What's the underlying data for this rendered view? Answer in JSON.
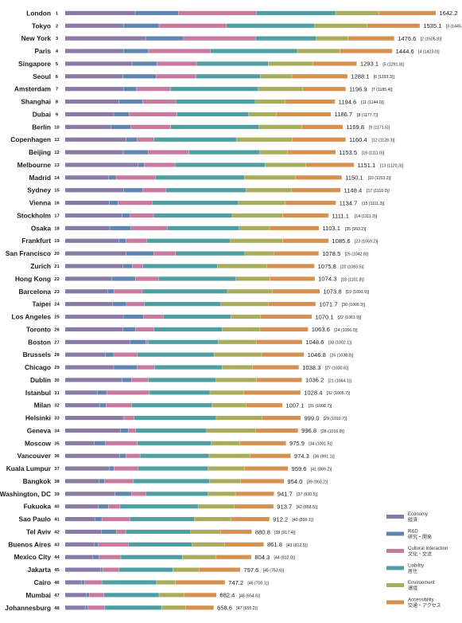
{
  "chart_data": {
    "type": "bar",
    "orientation": "horizontal",
    "stacked": true,
    "legend_position": "bottom-right",
    "grid": false,
    "series_meta": [
      {
        "name": "Economy",
        "name_jp": "経済",
        "color": "#8a7aa6"
      },
      {
        "name": "R&D",
        "name_jp": "研究・開発",
        "color": "#5f86b3"
      },
      {
        "name": "Cultural Interaction",
        "name_jp": "文化・交流",
        "color": "#c9799e"
      },
      {
        "name": "Liability",
        "name_jp": "居住",
        "color": "#4f9ea2"
      },
      {
        "name": "Environment",
        "name_jp": "環境",
        "color": "#a9ac5c"
      },
      {
        "name": "Accessibility",
        "name_jp": "交通・アクセス",
        "color": "#d6904f"
      }
    ],
    "rows": [
      {
        "rank": 1,
        "city": "London",
        "score": "1642.2",
        "prev": "[1 (1655.4)]",
        "seg": [
          343,
          213,
          380,
          388,
          211,
          280
        ]
      },
      {
        "rank": 2,
        "city": "Tokyo",
        "score": "1535.1",
        "prev": "[3 (1445.4)]",
        "seg": [
          286,
          174,
          330,
          431,
          256,
          260
        ]
      },
      {
        "rank": 3,
        "city": "New York",
        "score": "1476.6",
        "prev": "[2 (1505.8)]",
        "seg": [
          394,
          186,
          353,
          296,
          156,
          227
        ]
      },
      {
        "rank": 4,
        "city": "Paris",
        "score": "1444.6",
        "prev": "[4 (1423.0)]",
        "seg": [
          287,
          121,
          303,
          426,
          209,
          256
        ]
      },
      {
        "rank": 5,
        "city": "Singapore",
        "score": "1293.1",
        "prev": "[5 (1291.8)]",
        "seg": [
          328,
          121,
          194,
          351,
          218,
          216
        ]
      },
      {
        "rank": 6,
        "city": "Seoul",
        "score": "1288.1",
        "prev": "[6 (1193.3)]",
        "seg": [
          283,
          163,
          194,
          315,
          155,
          273
        ]
      },
      {
        "rank": 7,
        "city": "Amsterdam",
        "score": "1196.9",
        "prev": "[7 (1185.4)]",
        "seg": [
          287,
          63,
          166,
          430,
          218,
          210
        ]
      },
      {
        "rank": 8,
        "city": "Shanghai",
        "score": "1194.6",
        "prev": "[11 (1144.0)]",
        "seg": [
          264,
          115,
          163,
          389,
          145,
          246
        ]
      },
      {
        "rank": 9,
        "city": "Dubai",
        "score": "1186.7",
        "prev": "[8 (1177.7)]",
        "seg": [
          238,
          76,
          234,
          351,
          136,
          267
        ]
      },
      {
        "rank": 10,
        "city": "Berlin",
        "score": "1169.8",
        "prev": "[9 (1171.5)]",
        "seg": [
          226,
          95,
          196,
          432,
          209,
          202
        ]
      },
      {
        "rank": 11,
        "city": "Copenhagen",
        "score": "1160.4",
        "prev": "[12 (1128.3)]",
        "seg": [
          299,
          55,
          82,
          402,
          275,
          261
        ]
      },
      {
        "rank": 12,
        "city": "Beijing",
        "score": "1153.5",
        "prev": "[16 (1111.0)]",
        "seg": [
          285,
          122,
          200,
          346,
          135,
          237
        ]
      },
      {
        "rank": 13,
        "city": "Melbourne",
        "score": "1151.1",
        "prev": "[13 (1120.3)]",
        "seg": [
          356,
          32,
          151,
          440,
          200,
          236
        ]
      },
      {
        "rank": 14,
        "city": "Madrid",
        "score": "1150.1",
        "prev": "[10 (1153.2)]",
        "seg": [
          214,
          36,
          192,
          435,
          252,
          226
        ]
      },
      {
        "rank": 15,
        "city": "Sydney",
        "score": "1148.4",
        "prev": "[17 (1110.0)]",
        "seg": [
          287,
          94,
          112,
          393,
          222,
          241
        ]
      },
      {
        "rank": 16,
        "city": "Vienna",
        "score": "1134.7",
        "prev": "[15 (1111.3)]",
        "seg": [
          218,
          41,
          167,
          422,
          230,
          248
        ]
      },
      {
        "rank": 17,
        "city": "Stockholm",
        "score": "1111.1",
        "prev": "[14 (1111.3)]",
        "seg": [
          279,
          40,
          114,
          385,
          248,
          224
        ]
      },
      {
        "rank": 18,
        "city": "Osaka",
        "score": "1103.1",
        "prev": "[35 (993.2)]",
        "seg": [
          219,
          104,
          177,
          352,
          149,
          242
        ]
      },
      {
        "rank": 19,
        "city": "Frankfurt",
        "score": "1085.6",
        "prev": "[23 (1059.2)]",
        "seg": [
          263,
          35,
          101,
          410,
          256,
          225
        ]
      },
      {
        "rank": 20,
        "city": "San Francisco",
        "score": "1078.5",
        "prev": "[25 (1042.8)]",
        "seg": [
          299,
          136,
          106,
          339,
          141,
          221
        ]
      },
      {
        "rank": 21,
        "city": "Zurich",
        "score": "1075.8",
        "prev": "[20 (1083.5)]",
        "seg": [
          283,
          47,
          51,
          364,
          241,
          235
        ]
      },
      {
        "rank": 22,
        "city": "Hong Kong",
        "score": "1074.3",
        "prev": "[18 (1101.8)]",
        "seg": [
          230,
          114,
          114,
          378,
          166,
          221
        ]
      },
      {
        "rank": 23,
        "city": "Barcelona",
        "score": "1073.8",
        "prev": "[19 (1091.9)]",
        "seg": [
          209,
          30,
          139,
          417,
          219,
          233
        ]
      },
      {
        "rank": 24,
        "city": "Taipei",
        "score": "1071.7",
        "prev": "[30 (1009.3)]",
        "seg": [
          232,
          68,
          87,
          376,
          232,
          232
        ]
      },
      {
        "rank": 25,
        "city": "Los Angeles",
        "score": "1070.1",
        "prev": "[22 (1061.9)]",
        "seg": [
          285,
          99,
          96,
          331,
          145,
          252
        ]
      },
      {
        "rank": 26,
        "city": "Toronto",
        "score": "1063.6",
        "prev": "[24 (1056.0)]",
        "seg": [
          283,
          62,
          90,
          334,
          185,
          236
        ]
      },
      {
        "rank": 27,
        "city": "Boston",
        "score": "1048.6",
        "prev": "[33 (1002.1)]",
        "seg": [
          318,
          79,
          9,
          344,
          186,
          225
        ]
      },
      {
        "rank": 28,
        "city": "Brussels",
        "score": "1046.8",
        "prev": "[26 (1038.8)]",
        "seg": [
          198,
          40,
          116,
          375,
          233,
          208
        ]
      },
      {
        "rank": 29,
        "city": "Chicago",
        "score": "1038.3",
        "prev": "[27 (1030.6)]",
        "seg": [
          238,
          115,
          85,
          330,
          150,
          227
        ]
      },
      {
        "rank": 30,
        "city": "Dublin",
        "score": "1036.2",
        "prev": "[21 (1064.1)]",
        "seg": [
          280,
          45,
          82,
          332,
          199,
          222
        ]
      },
      {
        "rank": 31,
        "city": "Istanbul",
        "score": "1028.4",
        "prev": "[32 (1005.7)]",
        "seg": [
          157,
          47,
          209,
          296,
          164,
          280
        ]
      },
      {
        "rank": 32,
        "city": "Milan",
        "score": "1007.1",
        "prev": "[31 (1008.7)]",
        "seg": [
          169,
          32,
          125,
          392,
          168,
          178
        ]
      },
      {
        "rank": 33,
        "city": "Helsinki",
        "score": "999.0",
        "prev": "[29 (1010.7)]",
        "seg": [
          285,
          6,
          46,
          403,
          223,
          191
        ]
      },
      {
        "rank": 34,
        "city": "Geneva",
        "score": "996.8",
        "prev": "[28 (1016.8)]",
        "seg": [
          271,
          40,
          34,
          348,
          239,
          209
        ]
      },
      {
        "rank": 35,
        "city": "Moscow",
        "score": "975.9",
        "prev": "[34 (1001.5)]",
        "seg": [
          142,
          55,
          157,
          361,
          139,
          228
        ]
      },
      {
        "rank": 36,
        "city": "Vancouver",
        "score": "974.3",
        "prev": "[36 (991.1)]",
        "seg": [
          266,
          32,
          69,
          338,
          200,
          200
        ]
      },
      {
        "rank": 37,
        "city": "Kuala Lumpur",
        "score": "959.6",
        "prev": "[41 (889.2)]",
        "seg": [
          218,
          21,
          118,
          342,
          178,
          215
        ]
      },
      {
        "rank": 38,
        "city": "Bangkok",
        "score": "954.0",
        "prev": "[39 (903.2)]",
        "seg": [
          166,
          27,
          142,
          372,
          153,
          212
        ]
      },
      {
        "rank": 39,
        "city": "Washington, DC",
        "score": "941.7",
        "prev": "[37 (930.5)]",
        "seg": [
          245,
          81,
          69,
          305,
          134,
          189
        ]
      },
      {
        "rank": 40,
        "city": "Fukuoka",
        "score": "913.7",
        "prev": "[42 (858.5)]",
        "seg": [
          163,
          49,
          57,
          382,
          178,
          192
        ]
      },
      {
        "rank": 41,
        "city": "Sao Paulo",
        "score": "912.2",
        "prev": "[40 (899.1)]",
        "seg": [
          147,
          33,
          136,
          317,
          180,
          188
        ]
      },
      {
        "rank": 42,
        "city": "Tel Aviv",
        "score": "880.8",
        "prev": "[38 (917.4)]",
        "seg": [
          178,
          73,
          46,
          318,
          146,
          153
        ]
      },
      {
        "rank": 43,
        "city": "Buenos Aires",
        "score": "861.8",
        "prev": "[43 (812.5)]",
        "seg": [
          144,
          19,
          146,
          313,
          158,
          193
        ]
      },
      {
        "rank": 44,
        "city": "Mexico City",
        "score": "804.3",
        "prev": "[44 (812.0)]",
        "seg": [
          136,
          30,
          107,
          301,
          166,
          172
        ]
      },
      {
        "rank": 45,
        "city": "Jakarta",
        "score": "797.6",
        "prev": "[45 (753.6)]",
        "seg": [
          174,
          10,
          79,
          264,
          129,
          202
        ]
      },
      {
        "rank": 46,
        "city": "Cairo",
        "score": "747.2",
        "prev": "[46 (700.1)]",
        "seg": [
          79,
          17,
          84,
          268,
          91,
          244
        ]
      },
      {
        "rank": 47,
        "city": "Mumbai",
        "score": "682.4",
        "prev": "[48 (654.6)]",
        "seg": [
          103,
          15,
          72,
          270,
          122,
          159
        ]
      },
      {
        "rank": 48,
        "city": "Johannesburg",
        "score": "658.6",
        "prev": "[47 (655.2)]",
        "seg": [
          100,
          12,
          81,
          279,
          119,
          137
        ]
      }
    ]
  }
}
